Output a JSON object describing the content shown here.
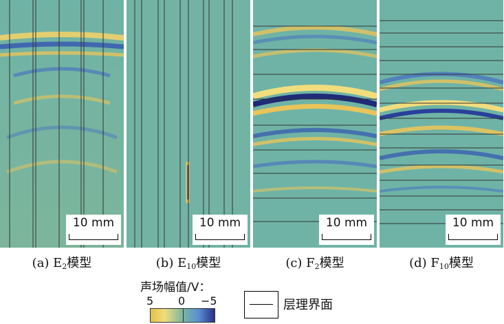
{
  "panels": [
    {
      "id": "a",
      "scale_label": "10 mm",
      "caption_prefix": "(a) E",
      "caption_sub": "2",
      "caption_suffix": "模型"
    },
    {
      "id": "b",
      "scale_label": "10 mm",
      "caption_prefix": "(b) E",
      "caption_sub": "10",
      "caption_suffix": "模型"
    },
    {
      "id": "c",
      "scale_label": "10 mm",
      "caption_prefix": "(c) F",
      "caption_sub": "2",
      "caption_suffix": "模型"
    },
    {
      "id": "d",
      "scale_label": "10 mm",
      "caption_prefix": "(d) F",
      "caption_sub": "10",
      "caption_suffix": "模型"
    }
  ],
  "colorbar": {
    "title": "声场幅值/V：",
    "tick_left": "5",
    "tick_mid": "0",
    "tick_right": "−5",
    "colors": [
      "#e3c24a",
      "#f2dd7c",
      "#7bb7a3",
      "#5a8fd0",
      "#2a2f8a"
    ]
  },
  "interface_legend": {
    "label": "层理界面"
  }
}
